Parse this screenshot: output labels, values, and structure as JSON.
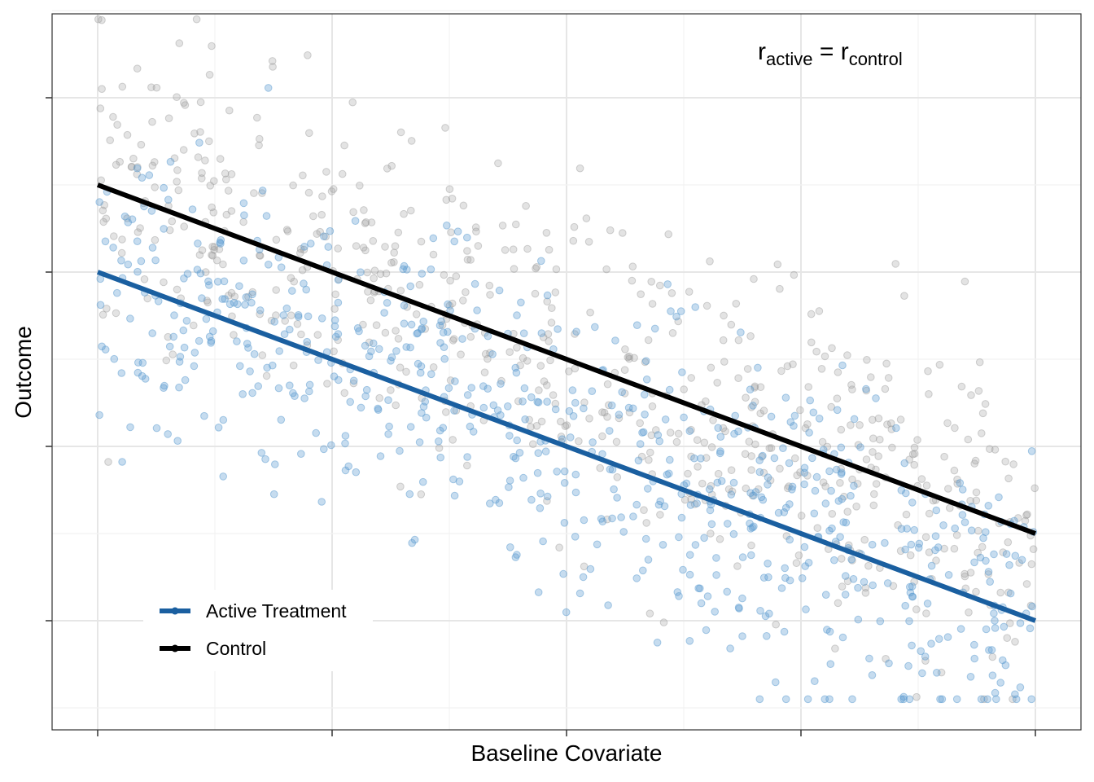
{
  "chart_data": {
    "type": "scatter",
    "xlabel": "Baseline Covariate",
    "ylabel": "Outcome",
    "xlim": [
      0,
      4
    ],
    "ylim": [
      -1.5,
      2.5
    ],
    "x_ticks": [
      0,
      1,
      2,
      3,
      4
    ],
    "y_ticks": [
      -1,
      0,
      1,
      2
    ],
    "tick_labels_shown": false,
    "grid": true,
    "annotation": {
      "r": "r",
      "sub1": "active",
      "eq": " = ",
      "sub2": "control"
    },
    "legend": {
      "position": "bottom-left",
      "entries": [
        "Active Treatment",
        "Control"
      ]
    },
    "series": [
      {
        "name": "Active Treatment",
        "color": "#1a5fa0",
        "point_color": "#5b9bd0",
        "n_points": 700,
        "fit": {
          "intercept": 1.0,
          "slope": -0.5
        },
        "residual_sd": 0.45
      },
      {
        "name": "Control",
        "color": "#000000",
        "point_color": "#9a9a9a",
        "n_points": 650,
        "fit": {
          "intercept": 1.5,
          "slope": -0.5
        },
        "residual_sd": 0.45
      }
    ]
  }
}
